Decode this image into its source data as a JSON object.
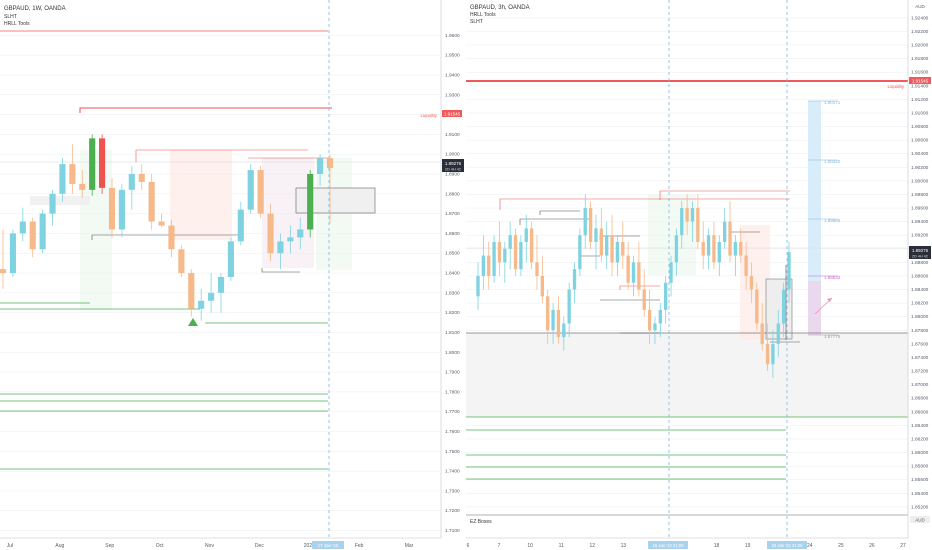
{
  "colors": {
    "bg": "#ffffff",
    "up": "#7fd3e0",
    "down": "#f5b98a",
    "strong_up": "#4caf50",
    "strong_down": "#ef5350",
    "grid": "#e6e9ef",
    "axis_text": "#555b66",
    "dash": "#7fb7e0",
    "liq": "#f05a5a",
    "green_line": "#4caf50",
    "box_line": "#777777",
    "pink_box": "#fde9e6",
    "green_box": "#e8f5e9",
    "gray_box": "#eeeeee",
    "tag_blue": "#a8d3f0",
    "tag_dark": "#2a2e39"
  },
  "chart_data": [
    {
      "type": "candlestick",
      "header": {
        "title": "GBPAUD, 1W, OANDA",
        "indicators": [
          "SLHT",
          "HRLL Tools"
        ]
      },
      "x_ticks": [
        "Jul",
        "Aug",
        "Sep",
        "Oct",
        "Nov",
        "Dec",
        "2022",
        "Feb",
        "Mar"
      ],
      "y_ticks": [
        1.96,
        1.95,
        1.94,
        1.93,
        1.92,
        1.91,
        1.9,
        1.89,
        1.88,
        1.87,
        1.86,
        1.85,
        1.84,
        1.83,
        1.82,
        1.81,
        1.8,
        1.79,
        1.78,
        1.77,
        1.76,
        1.75,
        1.74,
        1.73,
        1.72,
        1.71
      ],
      "y_range": [
        1.7075,
        1.9675
      ],
      "price_tag": {
        "label": "1.89276",
        "sub": "2D 4H 42"
      },
      "liquidity": {
        "label": "Liquidity",
        "price_label": "1.91545",
        "value": 1.91545
      },
      "date_tag": "17 Jan '22",
      "candles": [
        {
          "o": 1.842,
          "h": 1.862,
          "l": 1.832,
          "c": 1.84
        },
        {
          "o": 1.84,
          "h": 1.862,
          "l": 1.838,
          "c": 1.86
        },
        {
          "o": 1.86,
          "h": 1.873,
          "l": 1.856,
          "c": 1.866
        },
        {
          "o": 1.866,
          "h": 1.868,
          "l": 1.848,
          "c": 1.852
        },
        {
          "o": 1.852,
          "h": 1.872,
          "l": 1.85,
          "c": 1.87
        },
        {
          "o": 1.87,
          "h": 1.882,
          "l": 1.864,
          "c": 1.88
        },
        {
          "o": 1.88,
          "h": 1.898,
          "l": 1.876,
          "c": 1.895
        },
        {
          "o": 1.895,
          "h": 1.905,
          "l": 1.88,
          "c": 1.885
        },
        {
          "o": 1.885,
          "h": 1.892,
          "l": 1.878,
          "c": 1.882
        },
        {
          "o": 1.882,
          "h": 1.91,
          "l": 1.879,
          "c": 1.908
        },
        {
          "o": 1.908,
          "h": 1.91,
          "l": 1.88,
          "c": 1.883
        },
        {
          "o": 1.883,
          "h": 1.888,
          "l": 1.858,
          "c": 1.862
        },
        {
          "o": 1.862,
          "h": 1.885,
          "l": 1.858,
          "c": 1.882
        },
        {
          "o": 1.882,
          "h": 1.894,
          "l": 1.872,
          "c": 1.89
        },
        {
          "o": 1.89,
          "h": 1.895,
          "l": 1.882,
          "c": 1.886
        },
        {
          "o": 1.886,
          "h": 1.89,
          "l": 1.862,
          "c": 1.866
        },
        {
          "o": 1.866,
          "h": 1.87,
          "l": 1.863,
          "c": 1.864
        },
        {
          "o": 1.864,
          "h": 1.867,
          "l": 1.848,
          "c": 1.852
        },
        {
          "o": 1.852,
          "h": 1.854,
          "l": 1.838,
          "c": 1.84
        },
        {
          "o": 1.84,
          "h": 1.842,
          "l": 1.818,
          "c": 1.822
        },
        {
          "o": 1.822,
          "h": 1.832,
          "l": 1.816,
          "c": 1.826
        },
        {
          "o": 1.826,
          "h": 1.84,
          "l": 1.82,
          "c": 1.83
        },
        {
          "o": 1.83,
          "h": 1.84,
          "l": 1.82,
          "c": 1.838
        },
        {
          "o": 1.838,
          "h": 1.858,
          "l": 1.836,
          "c": 1.856
        },
        {
          "o": 1.856,
          "h": 1.876,
          "l": 1.854,
          "c": 1.872
        },
        {
          "o": 1.872,
          "h": 1.895,
          "l": 1.87,
          "c": 1.892
        },
        {
          "o": 1.892,
          "h": 1.894,
          "l": 1.868,
          "c": 1.87
        },
        {
          "o": 1.87,
          "h": 1.875,
          "l": 1.846,
          "c": 1.85
        },
        {
          "o": 1.85,
          "h": 1.86,
          "l": 1.842,
          "c": 1.856
        },
        {
          "o": 1.856,
          "h": 1.864,
          "l": 1.85,
          "c": 1.858
        },
        {
          "o": 1.858,
          "h": 1.868,
          "l": 1.852,
          "c": 1.862
        },
        {
          "o": 1.862,
          "h": 1.892,
          "l": 1.858,
          "c": 1.89
        },
        {
          "o": 1.89,
          "h": 1.9,
          "l": 1.884,
          "c": 1.898
        },
        {
          "o": 1.898,
          "h": 1.9,
          "l": 1.865,
          "c": 1.893
        }
      ]
    },
    {
      "type": "candlestick",
      "header": {
        "title": "GBPAUD, 3h, OANDA",
        "indicators": [
          "HRLL Tools",
          "SLHT"
        ]
      },
      "x_ticks": [
        "6",
        "7",
        "10",
        "11",
        "12",
        "13",
        "14",
        "17",
        "18",
        "19",
        "20",
        "24",
        "25",
        "26",
        "27"
      ],
      "y_ticks": [
        1.924,
        1.922,
        1.92,
        1.918,
        1.916,
        1.914,
        1.912,
        1.91,
        1.908,
        1.906,
        1.904,
        1.902,
        1.9,
        1.898,
        1.896,
        1.894,
        1.892,
        1.89,
        1.888,
        1.886,
        1.884,
        1.882,
        1.88,
        1.878,
        1.876,
        1.874,
        1.872,
        1.87,
        1.868,
        1.866,
        1.864,
        1.862,
        1.86,
        1.858,
        1.856,
        1.854,
        1.852
      ],
      "y_range": [
        1.8511,
        1.9256
      ],
      "currency": "AUD",
      "price_tag": {
        "label": "1.89276",
        "sub": "2D 4H 42"
      },
      "liquidity": {
        "label": "Liquidity",
        "price_label": "1.91545",
        "value": 1.91545
      },
      "date_tag_left": "16 Jan '22 21:00",
      "date_tag_right": "23 Jan '22 21:00",
      "axis_tag": "AUD",
      "ez_label": "EZ Boxes",
      "levels": [
        "1.90171",
        "1.90322",
        "1.89665",
        "1.88632",
        "1.87775"
      ],
      "candles": [
        {
          "o": 1.883,
          "h": 1.888,
          "l": 1.881,
          "c": 1.886
        },
        {
          "o": 1.886,
          "h": 1.892,
          "l": 1.884,
          "c": 1.889
        },
        {
          "o": 1.889,
          "h": 1.891,
          "l": 1.884,
          "c": 1.886
        },
        {
          "o": 1.886,
          "h": 1.892,
          "l": 1.885,
          "c": 1.891
        },
        {
          "o": 1.891,
          "h": 1.894,
          "l": 1.886,
          "c": 1.888
        },
        {
          "o": 1.888,
          "h": 1.891,
          "l": 1.885,
          "c": 1.89
        },
        {
          "o": 1.89,
          "h": 1.894,
          "l": 1.887,
          "c": 1.892
        },
        {
          "o": 1.892,
          "h": 1.893,
          "l": 1.886,
          "c": 1.887
        },
        {
          "o": 1.887,
          "h": 1.892,
          "l": 1.886,
          "c": 1.891
        },
        {
          "o": 1.891,
          "h": 1.895,
          "l": 1.888,
          "c": 1.893
        },
        {
          "o": 1.893,
          "h": 1.894,
          "l": 1.887,
          "c": 1.888
        },
        {
          "o": 1.888,
          "h": 1.892,
          "l": 1.884,
          "c": 1.886
        },
        {
          "o": 1.886,
          "h": 1.889,
          "l": 1.882,
          "c": 1.883
        },
        {
          "o": 1.883,
          "h": 1.884,
          "l": 1.876,
          "c": 1.878
        },
        {
          "o": 1.878,
          "h": 1.882,
          "l": 1.876,
          "c": 1.881
        },
        {
          "o": 1.881,
          "h": 1.883,
          "l": 1.876,
          "c": 1.877
        },
        {
          "o": 1.877,
          "h": 1.88,
          "l": 1.875,
          "c": 1.879
        },
        {
          "o": 1.879,
          "h": 1.885,
          "l": 1.877,
          "c": 1.884
        },
        {
          "o": 1.884,
          "h": 1.888,
          "l": 1.882,
          "c": 1.887
        },
        {
          "o": 1.887,
          "h": 1.893,
          "l": 1.886,
          "c": 1.892
        },
        {
          "o": 1.892,
          "h": 1.898,
          "l": 1.89,
          "c": 1.896
        },
        {
          "o": 1.896,
          "h": 1.897,
          "l": 1.89,
          "c": 1.891
        },
        {
          "o": 1.891,
          "h": 1.895,
          "l": 1.887,
          "c": 1.893
        },
        {
          "o": 1.893,
          "h": 1.896,
          "l": 1.888,
          "c": 1.889
        },
        {
          "o": 1.889,
          "h": 1.894,
          "l": 1.887,
          "c": 1.892
        },
        {
          "o": 1.892,
          "h": 1.895,
          "l": 1.886,
          "c": 1.888
        },
        {
          "o": 1.888,
          "h": 1.892,
          "l": 1.886,
          "c": 1.891
        },
        {
          "o": 1.891,
          "h": 1.894,
          "l": 1.887,
          "c": 1.889
        },
        {
          "o": 1.889,
          "h": 1.891,
          "l": 1.884,
          "c": 1.885
        },
        {
          "o": 1.885,
          "h": 1.889,
          "l": 1.883,
          "c": 1.888
        },
        {
          "o": 1.888,
          "h": 1.891,
          "l": 1.883,
          "c": 1.884
        },
        {
          "o": 1.884,
          "h": 1.887,
          "l": 1.88,
          "c": 1.881
        },
        {
          "o": 1.881,
          "h": 1.884,
          "l": 1.876,
          "c": 1.878
        },
        {
          "o": 1.878,
          "h": 1.88,
          "l": 1.876,
          "c": 1.879
        },
        {
          "o": 1.879,
          "h": 1.882,
          "l": 1.877,
          "c": 1.881
        },
        {
          "o": 1.881,
          "h": 1.886,
          "l": 1.879,
          "c": 1.885
        },
        {
          "o": 1.885,
          "h": 1.889,
          "l": 1.883,
          "c": 1.888
        },
        {
          "o": 1.888,
          "h": 1.893,
          "l": 1.886,
          "c": 1.892
        },
        {
          "o": 1.892,
          "h": 1.897,
          "l": 1.89,
          "c": 1.896
        },
        {
          "o": 1.896,
          "h": 1.898,
          "l": 1.892,
          "c": 1.894
        },
        {
          "o": 1.894,
          "h": 1.897,
          "l": 1.891,
          "c": 1.896
        },
        {
          "o": 1.896,
          "h": 1.898,
          "l": 1.89,
          "c": 1.891
        },
        {
          "o": 1.891,
          "h": 1.894,
          "l": 1.887,
          "c": 1.889
        },
        {
          "o": 1.889,
          "h": 1.893,
          "l": 1.887,
          "c": 1.892
        },
        {
          "o": 1.892,
          "h": 1.894,
          "l": 1.887,
          "c": 1.888
        },
        {
          "o": 1.888,
          "h": 1.892,
          "l": 1.886,
          "c": 1.891
        },
        {
          "o": 1.891,
          "h": 1.896,
          "l": 1.89,
          "c": 1.894
        },
        {
          "o": 1.894,
          "h": 1.897,
          "l": 1.888,
          "c": 1.889
        },
        {
          "o": 1.889,
          "h": 1.892,
          "l": 1.886,
          "c": 1.891
        },
        {
          "o": 1.891,
          "h": 1.893,
          "l": 1.888,
          "c": 1.889
        },
        {
          "o": 1.889,
          "h": 1.891,
          "l": 1.884,
          "c": 1.886
        },
        {
          "o": 1.886,
          "h": 1.888,
          "l": 1.882,
          "c": 1.884
        },
        {
          "o": 1.884,
          "h": 1.885,
          "l": 1.878,
          "c": 1.879
        },
        {
          "o": 1.879,
          "h": 1.882,
          "l": 1.875,
          "c": 1.876
        },
        {
          "o": 1.876,
          "h": 1.879,
          "l": 1.872,
          "c": 1.873
        },
        {
          "o": 1.873,
          "h": 1.878,
          "l": 1.871,
          "c": 1.876
        },
        {
          "o": 1.876,
          "h": 1.881,
          "l": 1.874,
          "c": 1.879
        },
        {
          "o": 1.879,
          "h": 1.885,
          "l": 1.877,
          "c": 1.884
        },
        {
          "o": 1.884,
          "h": 1.891,
          "l": 1.882,
          "c": 1.8895
        }
      ]
    }
  ]
}
